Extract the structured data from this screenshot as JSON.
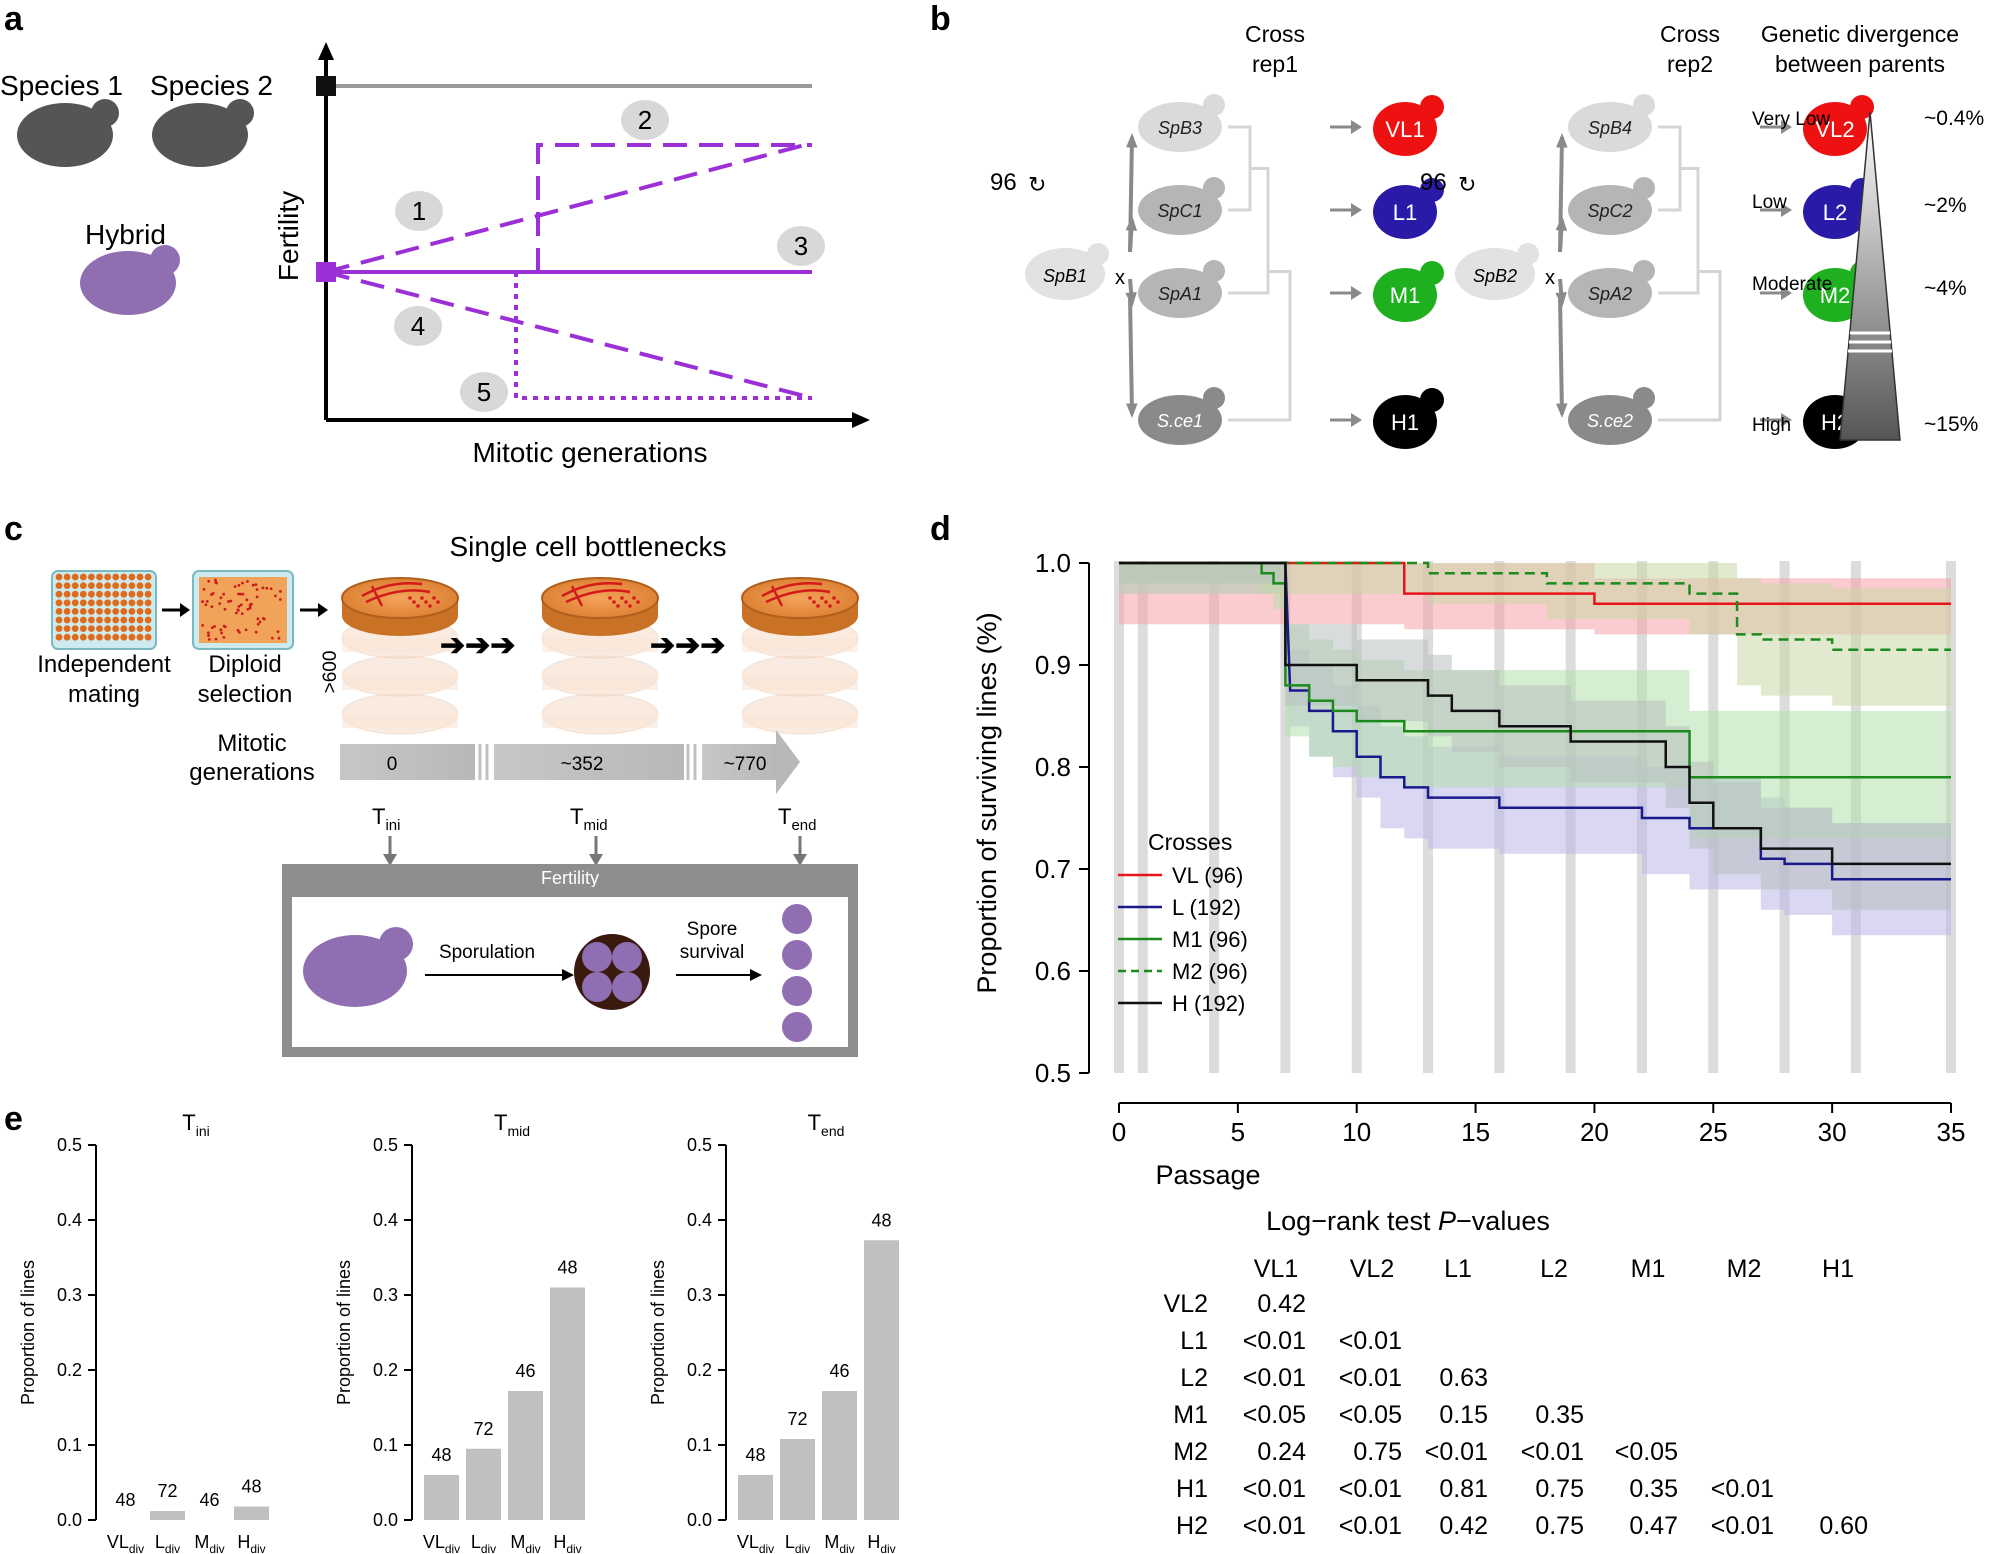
{
  "panels": {
    "a": {
      "letter": "a",
      "species1": "Species 1",
      "species2": "Species 2",
      "hybrid": "Hybrid",
      "ylabel": "Fertility",
      "xlabel": "Mitotic generations",
      "scenarios": [
        "1",
        "2",
        "3",
        "4",
        "5"
      ],
      "colors": {
        "parent": "#9a9a9a",
        "hybrid": "#9b30d6",
        "cell_dark": "#555555",
        "cell_hybrid": "#8f6fb2"
      }
    },
    "b": {
      "letter": "b",
      "cross_rep1": [
        "Cross",
        "rep1"
      ],
      "cross_rep2": [
        "Cross",
        "rep2"
      ],
      "divergence_title": [
        "Genetic divergence",
        "between parents"
      ],
      "cycles": "96",
      "cross_symbol": "x",
      "rep1": {
        "parent": "SpB1",
        "partners": [
          "SpB3",
          "SpC1",
          "SpA1",
          "S.ce1"
        ],
        "hybrids": [
          "VL1",
          "L1",
          "M1",
          "H1"
        ]
      },
      "rep2": {
        "parent": "SpB2",
        "partners": [
          "SpB4",
          "SpC2",
          "SpA2",
          "S.ce2"
        ],
        "hybrids": [
          "VL2",
          "L2",
          "M2",
          "H2"
        ]
      },
      "levels": [
        "Very Low",
        "Low",
        "Moderate",
        "High"
      ],
      "percents": [
        "~0.4%",
        "~2%",
        "~4%",
        "~15%"
      ],
      "hybrid_colors": [
        "#ee1111",
        "#2a1aa8",
        "#1fb01f",
        "#000000"
      ]
    },
    "c": {
      "letter": "c",
      "bottleneck_title": "Single cell bottlenecks",
      "step1": [
        "Independent",
        "mating"
      ],
      "step2": [
        "Diploid",
        "selection"
      ],
      "stack_count": ">600",
      "mitotic": [
        "Mitotic",
        "generations"
      ],
      "generations": [
        "0",
        "~352",
        "~770"
      ],
      "timepoints": [
        {
          "base": "T",
          "sub": "ini"
        },
        {
          "base": "T",
          "sub": "mid"
        },
        {
          "base": "T",
          "sub": "end"
        }
      ],
      "fertility": "Fertility",
      "sporulation": "Sporulation",
      "spore_survival": [
        "Spore",
        "survival"
      ]
    },
    "d": {
      "letter": "d",
      "legend_title": "Crosses",
      "pvalue_title_pre": "Log−rank test ",
      "pvalue_title_p": "P",
      "pvalue_title_post": "−values",
      "pvalue_cols": [
        "VL1",
        "VL2",
        "L1",
        "L2",
        "M1",
        "M2",
        "H1"
      ],
      "pvalue_rows": [
        {
          "name": "VL2",
          "vals": [
            "0.42"
          ]
        },
        {
          "name": "L1",
          "vals": [
            "<0.01",
            "<0.01"
          ]
        },
        {
          "name": "L2",
          "vals": [
            "<0.01",
            "<0.01",
            "0.63"
          ]
        },
        {
          "name": "M1",
          "vals": [
            "<0.05",
            "<0.05",
            "0.15",
            "0.35"
          ]
        },
        {
          "name": "M2",
          "vals": [
            "0.24",
            "0.75",
            "<0.01",
            "<0.01",
            "<0.05"
          ]
        },
        {
          "name": "H1",
          "vals": [
            "<0.01",
            "<0.01",
            "0.81",
            "0.75",
            "0.35",
            "<0.01"
          ]
        },
        {
          "name": "H2",
          "vals": [
            "<0.01",
            "<0.01",
            "0.42",
            "0.75",
            "0.47",
            "<0.01",
            "0.60"
          ]
        }
      ]
    },
    "e": {
      "letter": "e"
    }
  },
  "chart_data": [
    {
      "type": "line",
      "panel": "d",
      "xlabel": "Passage",
      "ylabel": "Proportion of surviving lines (%)",
      "xlim": [
        0,
        35
      ],
      "ylim": [
        0.5,
        1.0
      ],
      "xticks": [
        0,
        5,
        10,
        15,
        20,
        25,
        30,
        35
      ],
      "yticks": [
        0.5,
        0.6,
        0.7,
        0.8,
        0.9,
        1.0
      ],
      "bottleneck_passages": [
        0,
        1,
        4,
        7,
        10,
        13,
        16,
        19,
        22,
        25,
        28,
        31,
        35
      ],
      "series": [
        {
          "name": "VL (96)",
          "color": "#e8141b",
          "dash": false,
          "band": "#f6a3a8",
          "x": [
            0,
            12,
            12,
            20,
            20,
            35
          ],
          "y": [
            1.0,
            1.0,
            0.97,
            0.97,
            0.96,
            0.96
          ],
          "lower": [
            0.94,
            0.94,
            0.935,
            0.935,
            0.93,
            0.93
          ],
          "upper": [
            1.0,
            1.0,
            1.0,
            1.0,
            0.985,
            0.985
          ]
        },
        {
          "name": "L (192)",
          "color": "#1a1a8c",
          "dash": false,
          "band": "#b9b7e6",
          "x": [
            0,
            7,
            7.2,
            8,
            8,
            9,
            9,
            10,
            10,
            11,
            11,
            12,
            12,
            13,
            13,
            16,
            16,
            22,
            22,
            24,
            24,
            27,
            27,
            28,
            28,
            30,
            30,
            35
          ],
          "y": [
            1.0,
            1.0,
            0.875,
            0.875,
            0.855,
            0.855,
            0.835,
            0.835,
            0.81,
            0.81,
            0.79,
            0.79,
            0.78,
            0.78,
            0.77,
            0.77,
            0.76,
            0.76,
            0.75,
            0.75,
            0.74,
            0.74,
            0.71,
            0.71,
            0.705,
            0.705,
            0.69,
            0.69
          ],
          "lower": [
            0.97,
            0.97,
            0.84,
            0.84,
            0.81,
            0.81,
            0.79,
            0.79,
            0.77,
            0.77,
            0.74,
            0.74,
            0.73,
            0.73,
            0.72,
            0.72,
            0.715,
            0.715,
            0.695,
            0.695,
            0.68,
            0.68,
            0.66,
            0.66,
            0.655,
            0.655,
            0.635,
            0.635
          ],
          "upper": [
            1.0,
            1.0,
            0.915,
            0.915,
            0.9,
            0.9,
            0.88,
            0.88,
            0.86,
            0.86,
            0.84,
            0.84,
            0.83,
            0.83,
            0.82,
            0.82,
            0.81,
            0.81,
            0.8,
            0.8,
            0.79,
            0.79,
            0.77,
            0.77,
            0.76,
            0.76,
            0.745,
            0.745
          ]
        },
        {
          "name": "M1 (96)",
          "color": "#1c8a1c",
          "dash": false,
          "band": "#b3dfac",
          "x": [
            0,
            6,
            6,
            6.5,
            6.5,
            7,
            7,
            8,
            8,
            9,
            9,
            10,
            10,
            12,
            12,
            24,
            24,
            35
          ],
          "y": [
            1.0,
            1.0,
            0.99,
            0.99,
            0.98,
            0.98,
            0.88,
            0.88,
            0.865,
            0.865,
            0.855,
            0.855,
            0.845,
            0.845,
            0.835,
            0.835,
            0.79,
            0.79
          ],
          "lower": [
            0.98,
            0.98,
            0.97,
            0.97,
            0.955,
            0.955,
            0.83,
            0.83,
            0.81,
            0.81,
            0.8,
            0.8,
            0.79,
            0.79,
            0.78,
            0.78,
            0.73,
            0.73
          ],
          "upper": [
            1.0,
            1.0,
            1.0,
            1.0,
            1.0,
            1.0,
            0.94,
            0.94,
            0.925,
            0.925,
            0.915,
            0.915,
            0.905,
            0.905,
            0.895,
            0.895,
            0.855,
            0.855
          ]
        },
        {
          "name": "M2 (96)",
          "color": "#1c8a1c",
          "dash": true,
          "band": "#c8d7a8",
          "x": [
            0,
            13,
            13,
            18,
            18,
            24,
            24,
            26,
            26,
            27,
            27,
            30,
            30,
            35
          ],
          "y": [
            1.0,
            1.0,
            0.99,
            0.99,
            0.98,
            0.98,
            0.97,
            0.97,
            0.93,
            0.93,
            0.925,
            0.925,
            0.915,
            0.915
          ],
          "lower": [
            0.97,
            0.97,
            0.96,
            0.96,
            0.945,
            0.945,
            0.93,
            0.93,
            0.88,
            0.88,
            0.87,
            0.87,
            0.86,
            0.86
          ],
          "upper": [
            1.0,
            1.0,
            1.0,
            1.0,
            1.0,
            1.0,
            1.0,
            1.0,
            0.985,
            0.985,
            0.98,
            0.98,
            0.975,
            0.975
          ]
        },
        {
          "name": "H (192)",
          "color": "#111111",
          "dash": false,
          "band": "#b8bfbf",
          "x": [
            0,
            7,
            7,
            10,
            10,
            13,
            13,
            14,
            14,
            16,
            16,
            19,
            19,
            23,
            23,
            24,
            24,
            25,
            25,
            27,
            27,
            30,
            30,
            35
          ],
          "y": [
            1.0,
            1.0,
            0.9,
            0.9,
            0.885,
            0.885,
            0.87,
            0.87,
            0.855,
            0.855,
            0.84,
            0.84,
            0.825,
            0.825,
            0.8,
            0.8,
            0.765,
            0.765,
            0.74,
            0.74,
            0.72,
            0.72,
            0.705,
            0.705
          ],
          "lower": [
            0.98,
            0.98,
            0.86,
            0.86,
            0.845,
            0.845,
            0.83,
            0.83,
            0.815,
            0.815,
            0.8,
            0.8,
            0.785,
            0.785,
            0.76,
            0.76,
            0.72,
            0.72,
            0.695,
            0.695,
            0.68,
            0.68,
            0.66,
            0.66
          ],
          "upper": [
            1.0,
            1.0,
            0.94,
            0.94,
            0.925,
            0.925,
            0.91,
            0.91,
            0.895,
            0.895,
            0.88,
            0.88,
            0.865,
            0.865,
            0.84,
            0.84,
            0.805,
            0.805,
            0.785,
            0.785,
            0.76,
            0.76,
            0.745,
            0.745
          ]
        }
      ]
    },
    {
      "type": "bar",
      "panel": "e",
      "title": {
        "base": "T",
        "sub": "ini"
      },
      "ylabel": "Proportion of lines",
      "ylim": [
        0,
        0.5
      ],
      "yticks": [
        "0.0",
        "0.1",
        "0.2",
        "0.3",
        "0.4",
        "0.5"
      ],
      "categories": [
        {
          "base": "VL",
          "sub": "div"
        },
        {
          "base": "L",
          "sub": "div"
        },
        {
          "base": "M",
          "sub": "div"
        },
        {
          "base": "H",
          "sub": "div"
        }
      ],
      "values": [
        0.0,
        0.012,
        0.0,
        0.018
      ],
      "labels": [
        "48",
        "72",
        "46",
        "48"
      ]
    },
    {
      "type": "bar",
      "panel": "e",
      "title": {
        "base": "T",
        "sub": "mid"
      },
      "ylabel": "Proportion of lines",
      "ylim": [
        0,
        0.5
      ],
      "yticks": [
        "0.0",
        "0.1",
        "0.2",
        "0.3",
        "0.4",
        "0.5"
      ],
      "categories": [
        {
          "base": "VL",
          "sub": "div"
        },
        {
          "base": "L",
          "sub": "div"
        },
        {
          "base": "M",
          "sub": "div"
        },
        {
          "base": "H",
          "sub": "div"
        }
      ],
      "values": [
        0.06,
        0.095,
        0.172,
        0.31
      ],
      "labels": [
        "48",
        "72",
        "46",
        "48"
      ]
    },
    {
      "type": "bar",
      "panel": "e",
      "title": {
        "base": "T",
        "sub": "end"
      },
      "ylabel": "Proportion of lines",
      "ylim": [
        0,
        0.5
      ],
      "yticks": [
        "0.0",
        "0.1",
        "0.2",
        "0.3",
        "0.4",
        "0.5"
      ],
      "categories": [
        {
          "base": "VL",
          "sub": "div"
        },
        {
          "base": "L",
          "sub": "div"
        },
        {
          "base": "M",
          "sub": "div"
        },
        {
          "base": "H",
          "sub": "div"
        }
      ],
      "values": [
        0.06,
        0.108,
        0.172,
        0.373
      ],
      "labels": [
        "48",
        "72",
        "46",
        "48"
      ]
    }
  ]
}
